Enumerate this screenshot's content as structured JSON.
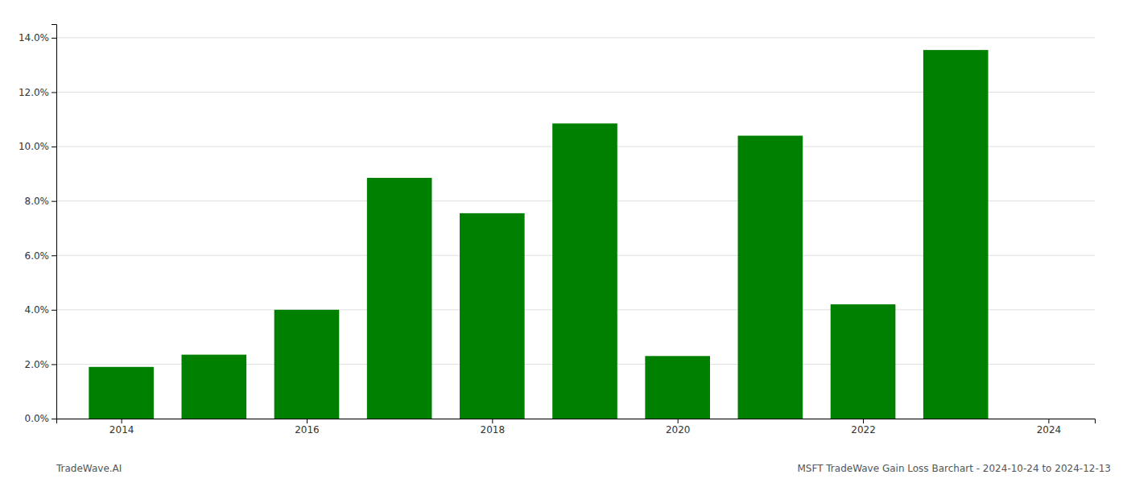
{
  "chart_data": {
    "type": "bar",
    "x": [
      2014,
      2015,
      2016,
      2017,
      2018,
      2019,
      2020,
      2021,
      2022,
      2023
    ],
    "values": [
      0.019,
      0.0235,
      0.04,
      0.0885,
      0.0755,
      0.1085,
      0.023,
      0.104,
      0.042,
      0.1355
    ],
    "color": "#008000",
    "xlim": [
      2013.3,
      2024.5
    ],
    "xticks": [
      2014,
      2016,
      2018,
      2020,
      2022,
      2024
    ],
    "ylim": [
      0,
      0.145
    ],
    "yticks": [
      {
        "value": 0.0,
        "label": "0.0%"
      },
      {
        "value": 0.02,
        "label": "2.0%"
      },
      {
        "value": 0.04,
        "label": "4.0%"
      },
      {
        "value": 0.06,
        "label": "6.0%"
      },
      {
        "value": 0.08,
        "label": "8.0%"
      },
      {
        "value": 0.1,
        "label": "10.0%"
      },
      {
        "value": 0.12,
        "label": "12.0%"
      },
      {
        "value": 0.14,
        "label": "14.0%"
      }
    ],
    "grid": true,
    "annotations": [
      "TradeWave.AI",
      "MSFT TradeWave Gain Loss Barchart - 2024-10-24 to 2024-12-13"
    ]
  }
}
